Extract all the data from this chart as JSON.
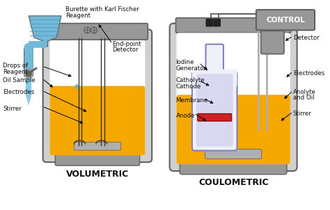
{
  "bg_color": "#FFFFFF",
  "title_vol": "VOLUMETRIC",
  "title_coul": "COULOMETRIC",
  "control_label": "CONTROL",
  "colors": {
    "yellow_fill": "#F5A800",
    "blue_liquid": "#5AAED0",
    "blue_flask": "#72B8D8",
    "blue_tube": "#88C8E8",
    "gray_metal": "#989898",
    "gray_dark": "#606060",
    "gray_light": "#D0D0D0",
    "gray_mid": "#B0B0B0",
    "purple_inner": "#8080C0",
    "purple_light": "#B0B0D8",
    "white": "#FFFFFF",
    "red_membrane": "#CC2222",
    "black": "#111111",
    "bg": "#FFFFFF",
    "dark_electrode": "#333333"
  }
}
